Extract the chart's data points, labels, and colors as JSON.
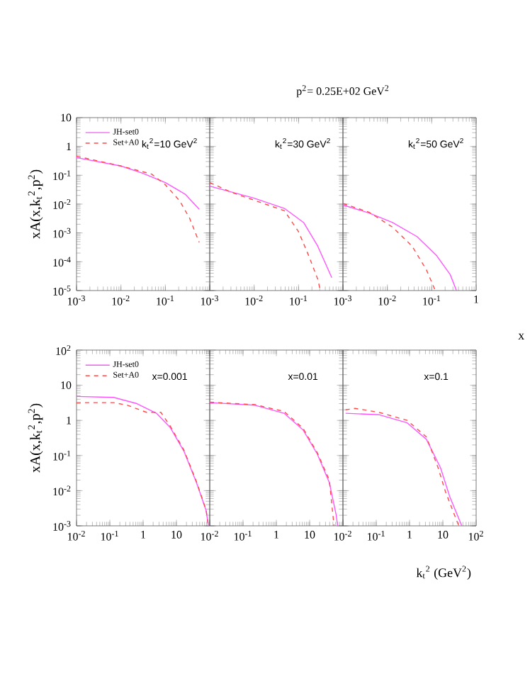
{
  "chart_data": [
    {
      "type": "line",
      "log": "xy",
      "ylabel": "xA(x,k$_{t}$$^{2}$,p$^{2}$)",
      "legend": "top left",
      "annotations": [
        "k$_{t}$$^{2}$=10 GeV$^{2}$"
      ],
      "xlim": [
        0.001,
        1
      ],
      "ylim": [
        1e-05,
        10
      ],
      "xticks": [
        {
          "value": 0.001,
          "label": "10$^{-3}$"
        },
        {
          "value": 0.01,
          "label": "10$^{-2}$"
        },
        {
          "value": 0.1,
          "label": "10$^{-1}$"
        },
        {
          "value": 1,
          "label": null
        }
      ],
      "yticks": [
        {
          "value": 1e-05,
          "label": "10$^{-5}$"
        },
        {
          "value": 0.0001,
          "label": "10$^{-4}$"
        },
        {
          "value": 0.001,
          "label": "10$^{-3}$"
        },
        {
          "value": 0.01,
          "label": "10$^{-2}$"
        },
        {
          "value": 0.1,
          "label": "10$^{-1}$"
        },
        1,
        10
      ],
      "series": [
        {
          "name": "JH-set0",
          "color": "#ff55ff",
          "line_style": "solid",
          "x": [
            0.001,
            0.01,
            0.03,
            0.1,
            0.28,
            0.58
          ],
          "values": [
            0.41,
            0.21,
            0.12,
            0.056,
            0.022,
            0.0066
          ]
        },
        {
          "name": "Set+A0",
          "color": "#ff4a4a",
          "line_style": "dashed",
          "x": [
            0.001,
            0.01,
            0.049,
            0.1,
            0.21,
            0.35,
            0.58
          ],
          "values": [
            0.46,
            0.21,
            0.11,
            0.047,
            0.013,
            0.0033,
            0.00047
          ]
        }
      ]
    },
    {
      "type": "line",
      "log": "xy",
      "title": "p$^{2}$= 0.25E+02 GeV$^{2}$",
      "tick_labels": "x",
      "annotations": [
        "k$_{t}$$^{2}$=30 GeV$^{2}$"
      ],
      "xlim": [
        0.001,
        1
      ],
      "ylim": [
        1e-05,
        10
      ],
      "xticks": [
        {
          "value": 0.001,
          "label": "10$^{-3}$"
        },
        {
          "value": 0.01,
          "label": "10$^{-2}$"
        },
        {
          "value": 0.1,
          "label": "10$^{-1}$"
        },
        {
          "value": 1,
          "label": null
        }
      ],
      "yticks": [
        1e-05,
        0.0001,
        0.001,
        0.01,
        0.1,
        1,
        10
      ],
      "series": [
        {
          "color": "#ff55ff",
          "line_style": "solid",
          "x": [
            0.001,
            0.01,
            0.048,
            0.13,
            0.27,
            0.56
          ],
          "values": [
            0.042,
            0.016,
            0.0071,
            0.0023,
            0.00035,
            2.8e-05
          ]
        },
        {
          "color": "#ff4a4a",
          "line_style": "dashed",
          "x": [
            0.001,
            0.0032,
            0.048,
            0.1,
            0.17,
            0.27,
            0.31
          ],
          "values": [
            0.056,
            0.025,
            0.0059,
            0.0011,
            0.00016,
            2.5e-05,
            1e-05
          ]
        }
      ]
    },
    {
      "type": "line",
      "log": "xy",
      "xlabel": "x",
      "tick_labels": "x",
      "annotations": [
        "k$_{t}$$^{2}$=50 GeV$^{2}$"
      ],
      "xlim": [
        0.001,
        1
      ],
      "ylim": [
        1e-05,
        10
      ],
      "xticks": [
        {
          "value": 0.001,
          "label": "10$^{-3}$"
        },
        {
          "value": 0.01,
          "label": "10$^{-2}$"
        },
        {
          "value": 0.1,
          "label": "10$^{-1}$"
        },
        1
      ],
      "yticks": [
        1e-05,
        0.0001,
        0.001,
        0.01,
        0.1,
        1,
        10
      ],
      "series": [
        {
          "color": "#ff55ff",
          "line_style": "solid",
          "x": [
            0.001,
            0.0039,
            0.013,
            0.047,
            0.13,
            0.26,
            0.36
          ],
          "values": [
            0.0093,
            0.0049,
            0.0023,
            0.00074,
            0.00016,
            3.6e-05,
            1e-05
          ]
        },
        {
          "color": "#ff4a4a",
          "line_style": "dashed",
          "x": [
            0.001,
            0.0039,
            0.013,
            0.036,
            0.076,
            0.12
          ],
          "values": [
            0.0105,
            0.0052,
            0.0016,
            0.00035,
            5.2e-05,
            1e-05
          ]
        }
      ]
    },
    {
      "type": "line",
      "log": "xy",
      "ylabel": "xA(x,k$_{t}$$^{2}$,p$^{2}$)",
      "legend": "top left",
      "annotations": [
        "x=0.001"
      ],
      "xlim": [
        0.01,
        100
      ],
      "ylim": [
        0.001,
        100
      ],
      "xticks": [
        {
          "value": 0.01,
          "label": "10$^{-2}$"
        },
        {
          "value": 0.1,
          "label": "10$^{-1}$"
        },
        1,
        10,
        {
          "value": 100,
          "label": null
        }
      ],
      "yticks": [
        {
          "value": 0.001,
          "label": "10$^{-3}$"
        },
        {
          "value": 0.01,
          "label": "10$^{-2}$"
        },
        {
          "value": 0.1,
          "label": "10$^{-1}$"
        },
        1,
        10,
        {
          "value": 100,
          "label": "10$^{2}$"
        }
      ],
      "series": [
        {
          "name": "JH-set0",
          "color": "#ff55ff",
          "line_style": "solid",
          "x": [
            0.01,
            0.13,
            0.65,
            2.5,
            6.5,
            17,
            40,
            78,
            91
          ],
          "values": [
            4.8,
            4.5,
            3.0,
            1.6,
            0.63,
            0.13,
            0.017,
            0.0027,
            0.001
          ]
        },
        {
          "name": "Set+A0",
          "color": "#ff4a4a",
          "line_style": "dashed",
          "x": [
            0.01,
            0.13,
            0.34,
            0.91,
            1.26,
            3.4,
            6.5,
            17,
            40,
            78,
            91
          ],
          "values": [
            3.2,
            3.2,
            2.7,
            1.9,
            1.7,
            1.7,
            0.69,
            0.14,
            0.018,
            0.0028,
            0.001
          ]
        }
      ]
    },
    {
      "type": "line",
      "log": "xy",
      "tick_labels": "x",
      "annotations": [
        "x=0.01"
      ],
      "xlim": [
        0.01,
        100
      ],
      "ylim": [
        0.001,
        100
      ],
      "xticks": [
        {
          "value": 0.01,
          "label": "10$^{-2}$"
        },
        {
          "value": 0.1,
          "label": "10$^{-1}$"
        },
        1,
        10,
        {
          "value": 100,
          "label": null
        }
      ],
      "yticks": [
        0.001,
        0.01,
        0.1,
        1,
        10,
        100
      ],
      "series": [
        {
          "color": "#ff55ff",
          "line_style": "solid",
          "x": [
            0.01,
            0.23,
            1.7,
            6.3,
            17,
            39,
            63,
            69
          ],
          "values": [
            3.2,
            2.7,
            1.6,
            0.54,
            0.11,
            0.017,
            0.002,
            0.001
          ]
        },
        {
          "color": "#ff4a4a",
          "line_style": "dashed",
          "x": [
            0.01,
            0.23,
            1.7,
            6.3,
            17,
            39,
            54
          ],
          "values": [
            3.3,
            2.8,
            1.8,
            0.6,
            0.12,
            0.02,
            0.001
          ]
        }
      ]
    },
    {
      "type": "line",
      "log": "xy",
      "xlabel": "k$_{t}$$^{2}$ (GeV$^{2}$)",
      "tick_labels": "x",
      "annotations": [
        "x=0.1"
      ],
      "xlim": [
        0.01,
        100
      ],
      "ylim": [
        0.001,
        100
      ],
      "xticks": [
        {
          "value": 0.01,
          "label": "10$^{-2}$"
        },
        {
          "value": 0.1,
          "label": "10$^{-1}$"
        },
        1,
        10,
        {
          "value": 100,
          "label": "10$^{2}$"
        }
      ],
      "yticks": [
        0.001,
        0.01,
        0.1,
        1,
        10,
        100
      ],
      "series": [
        {
          "color": "#ff55ff",
          "line_style": "solid",
          "x": [
            0.012,
            0.12,
            0.85,
            3.2,
            8.5,
            16,
            37
          ],
          "values": [
            1.6,
            1.45,
            0.85,
            0.29,
            0.045,
            0.0069,
            0.001
          ]
        },
        {
          "color": "#ff4a4a",
          "line_style": "dashed",
          "x": [
            0.012,
            0.023,
            0.12,
            0.85,
            3.2,
            7.2,
            12,
            30
          ],
          "values": [
            2.0,
            2.2,
            1.7,
            1.0,
            0.34,
            0.045,
            0.0093,
            0.001
          ]
        }
      ]
    }
  ]
}
